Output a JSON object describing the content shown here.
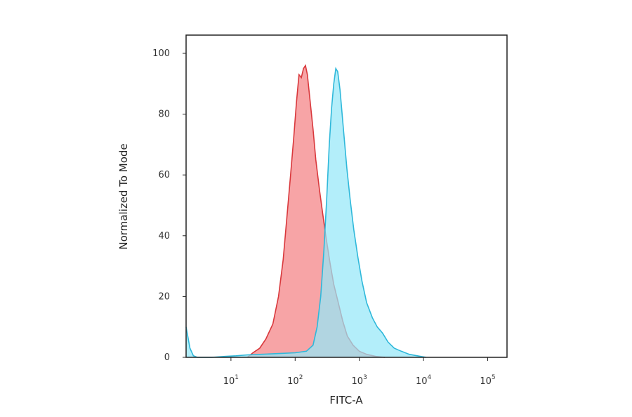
{
  "chart_data": {
    "type": "area",
    "title": "",
    "xlabel": "FITC-A",
    "ylabel": "Normalized To Mode",
    "x_scale": "log",
    "xlim": [
      2,
      200000
    ],
    "ylim": [
      0,
      106
    ],
    "grid": false,
    "legend": "none",
    "x_ticks": [
      {
        "value": 10,
        "base": "10",
        "exp": "1"
      },
      {
        "value": 100,
        "base": "10",
        "exp": "2"
      },
      {
        "value": 1000,
        "base": "10",
        "exp": "3"
      },
      {
        "value": 10000,
        "base": "10",
        "exp": "4"
      },
      {
        "value": 100000,
        "base": "10",
        "exp": "5"
      }
    ],
    "y_ticks": [
      0,
      20,
      40,
      60,
      80,
      100
    ],
    "series": [
      {
        "color_fill": "#f7a4a6",
        "color_line": "#d9383c",
        "points": [
          [
            18,
            0
          ],
          [
            22,
            1.5
          ],
          [
            28,
            3
          ],
          [
            35,
            6
          ],
          [
            45,
            11
          ],
          [
            55,
            20
          ],
          [
            65,
            32
          ],
          [
            75,
            47
          ],
          [
            85,
            60
          ],
          [
            95,
            72
          ],
          [
            105,
            84
          ],
          [
            115,
            93
          ],
          [
            125,
            92
          ],
          [
            135,
            95
          ],
          [
            145,
            96
          ],
          [
            155,
            93
          ],
          [
            170,
            85
          ],
          [
            190,
            75
          ],
          [
            210,
            65
          ],
          [
            240,
            55
          ],
          [
            270,
            47
          ],
          [
            300,
            40
          ],
          [
            350,
            31
          ],
          [
            400,
            24
          ],
          [
            470,
            18
          ],
          [
            550,
            12
          ],
          [
            650,
            7
          ],
          [
            800,
            4
          ],
          [
            1000,
            2
          ],
          [
            1300,
            1
          ],
          [
            1800,
            0.3
          ],
          [
            2500,
            0
          ]
        ]
      },
      {
        "color_fill": "#96e8f8",
        "color_line": "#2fb8da",
        "points": [
          [
            2,
            10
          ],
          [
            2.3,
            3
          ],
          [
            2.6,
            0.5
          ],
          [
            3,
            0
          ],
          [
            5,
            0
          ],
          [
            8,
            0.3
          ],
          [
            12,
            0.5
          ],
          [
            18,
            0.8
          ],
          [
            30,
            1
          ],
          [
            60,
            1.3
          ],
          [
            100,
            1.5
          ],
          [
            150,
            2
          ],
          [
            190,
            4
          ],
          [
            220,
            10
          ],
          [
            250,
            20
          ],
          [
            280,
            35
          ],
          [
            310,
            52
          ],
          [
            340,
            70
          ],
          [
            370,
            82
          ],
          [
            400,
            90
          ],
          [
            430,
            95
          ],
          [
            460,
            94
          ],
          [
            500,
            88
          ],
          [
            560,
            76
          ],
          [
            640,
            62
          ],
          [
            720,
            52
          ],
          [
            820,
            42
          ],
          [
            950,
            33
          ],
          [
            1100,
            25
          ],
          [
            1300,
            18
          ],
          [
            1600,
            13
          ],
          [
            1900,
            10
          ],
          [
            2300,
            8
          ],
          [
            2800,
            5
          ],
          [
            3500,
            3
          ],
          [
            4500,
            2
          ],
          [
            6000,
            1
          ],
          [
            8000,
            0.5
          ],
          [
            11000,
            0
          ]
        ]
      }
    ]
  }
}
